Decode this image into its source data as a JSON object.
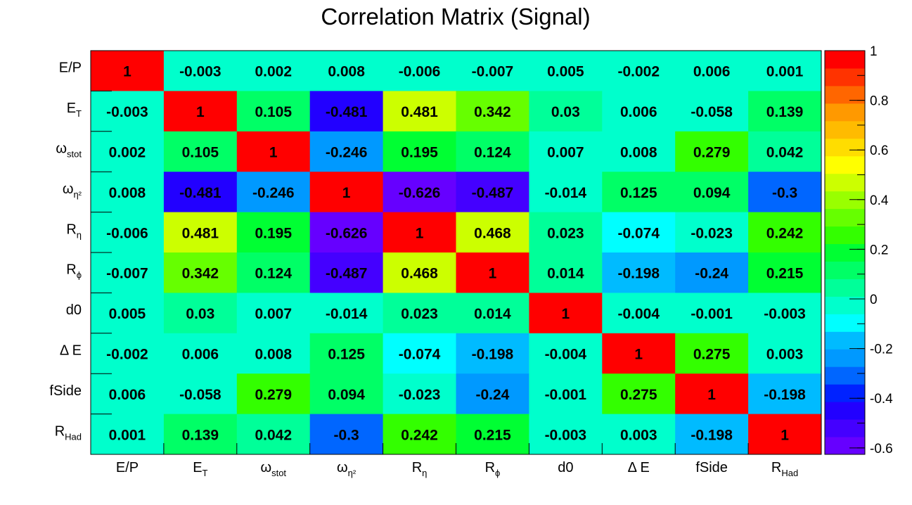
{
  "chart_data": {
    "type": "heatmap",
    "title": "Correlation Matrix (Signal)",
    "xlabel": "",
    "ylabel": "",
    "labels": [
      {
        "main": "E/P",
        "sub": ""
      },
      {
        "main": "E",
        "sub": "T"
      },
      {
        "main": "ω",
        "sub": "stot"
      },
      {
        "main": "ω",
        "sub": "η²"
      },
      {
        "main": "R",
        "sub": "η"
      },
      {
        "main": "R",
        "sub": "ϕ"
      },
      {
        "main": "d0",
        "sub": ""
      },
      {
        "main": "Δ E",
        "sub": ""
      },
      {
        "main": "fSide",
        "sub": ""
      },
      {
        "main": "R",
        "sub": "Had"
      }
    ],
    "matrix": [
      [
        1,
        -0.003,
        0.002,
        0.008,
        -0.006,
        -0.007,
        0.005,
        -0.002,
        0.006,
        0.001
      ],
      [
        -0.003,
        1,
        0.105,
        -0.481,
        0.481,
        0.342,
        0.03,
        0.006,
        -0.058,
        0.139
      ],
      [
        0.002,
        0.105,
        1,
        -0.246,
        0.195,
        0.124,
        0.007,
        0.008,
        0.279,
        0.042
      ],
      [
        0.008,
        -0.481,
        -0.246,
        1,
        -0.626,
        -0.487,
        -0.014,
        0.125,
        0.094,
        -0.3
      ],
      [
        -0.006,
        0.481,
        0.195,
        -0.626,
        1,
        0.468,
        0.023,
        -0.074,
        -0.023,
        0.242
      ],
      [
        -0.007,
        0.342,
        0.124,
        -0.487,
        0.468,
        1,
        0.014,
        -0.198,
        -0.24,
        0.215
      ],
      [
        0.005,
        0.03,
        0.007,
        -0.014,
        0.023,
        0.014,
        1,
        -0.004,
        -0.001,
        -0.003
      ],
      [
        -0.002,
        0.006,
        0.008,
        0.125,
        -0.074,
        -0.198,
        -0.004,
        1,
        0.275,
        0.003
      ],
      [
        0.006,
        -0.058,
        0.279,
        0.094,
        -0.023,
        -0.24,
        -0.001,
        0.275,
        1,
        -0.198
      ],
      [
        0.001,
        0.139,
        0.042,
        -0.3,
        0.242,
        0.215,
        -0.003,
        0.003,
        -0.198,
        1
      ]
    ],
    "zrange": [
      -0.626,
      1
    ],
    "colorbar_ticks": [
      "1",
      "0.8",
      "0.6",
      "0.4",
      "0.2",
      "0",
      "-0.2",
      "-0.4",
      "-0.6"
    ],
    "colorbar_tick_values": [
      1,
      0.8,
      0.6,
      0.4,
      0.2,
      0,
      -0.2,
      -0.4,
      -0.6
    ],
    "palette": [
      "#6600ff",
      "#4400ff",
      "#2200ff",
      "#0022ff",
      "#0066ff",
      "#0099ff",
      "#00bbff",
      "#00ffff",
      "#00ffcc",
      "#00ff99",
      "#00ff66",
      "#00ff33",
      "#33ff00",
      "#66ff00",
      "#99ff00",
      "#ccff00",
      "#ffff00",
      "#ffdd00",
      "#ffbb00",
      "#ff9900",
      "#ff6600",
      "#ff3300",
      "#ff0000"
    ],
    "grid": false,
    "legend": "colorbar-right"
  }
}
